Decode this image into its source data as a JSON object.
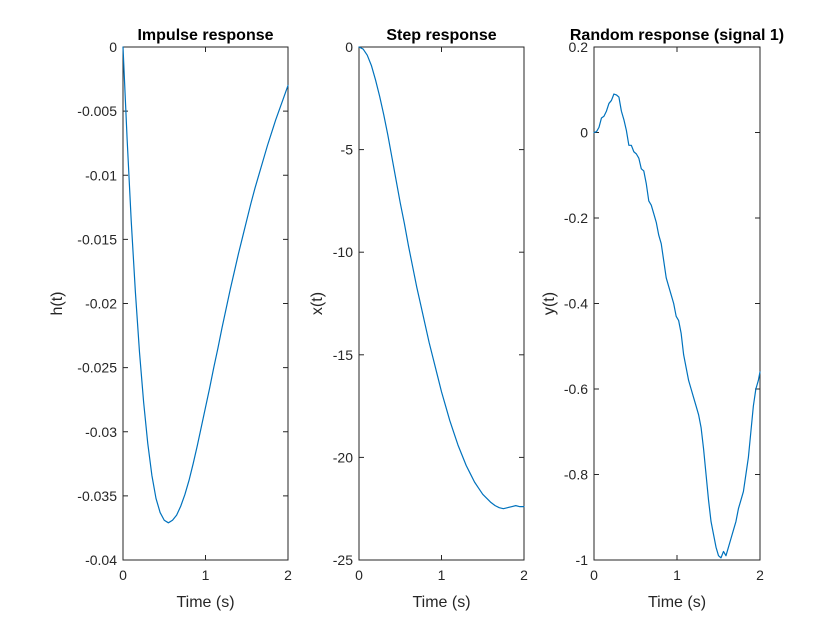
{
  "chart_data": [
    {
      "type": "line",
      "title": "Impulse response",
      "xlabel": "Time (s)",
      "ylabel": "h(t)",
      "xlim": [
        0,
        2
      ],
      "ylim": [
        -0.04,
        0
      ],
      "xticks": [
        0,
        1,
        2
      ],
      "yticks": [
        -0.04,
        -0.035,
        -0.03,
        -0.025,
        -0.02,
        -0.015,
        -0.01,
        -0.005,
        0
      ],
      "xtick_labels": [
        "0",
        "1",
        "2"
      ],
      "ytick_labels": [
        "-0.04",
        "-0.035",
        "-0.03",
        "-0.025",
        "-0.02",
        "-0.015",
        "-0.01",
        "-0.005",
        "0"
      ],
      "grid": false,
      "line_color": "#0072BD",
      "series": [
        {
          "x": [
            0,
            0.05,
            0.1,
            0.15,
            0.2,
            0.25,
            0.3,
            0.35,
            0.4,
            0.45,
            0.5,
            0.55,
            0.6,
            0.65,
            0.7,
            0.75,
            0.8,
            0.85,
            0.9,
            0.95,
            1.0,
            1.05,
            1.1,
            1.15,
            1.2,
            1.25,
            1.3,
            1.35,
            1.4,
            1.45,
            1.5,
            1.55,
            1.6,
            1.65,
            1.7,
            1.75,
            1.8,
            1.85,
            1.9,
            1.95,
            2.0
          ],
          "y": [
            0,
            -0.0072,
            -0.0136,
            -0.0191,
            -0.0238,
            -0.0277,
            -0.0309,
            -0.0334,
            -0.0352,
            -0.0363,
            -0.0369,
            -0.0371,
            -0.0369,
            -0.0365,
            -0.0358,
            -0.0349,
            -0.0338,
            -0.0325,
            -0.0311,
            -0.0296,
            -0.0281,
            -0.0266,
            -0.025,
            -0.0235,
            -0.0219,
            -0.0204,
            -0.0189,
            -0.0175,
            -0.0161,
            -0.0148,
            -0.0135,
            -0.0122,
            -0.011,
            -0.0099,
            -0.0088,
            -0.0077,
            -0.0067,
            -0.0057,
            -0.0048,
            -0.0039,
            -0.003
          ]
        }
      ]
    },
    {
      "type": "line",
      "title": "Step response",
      "xlabel": "Time (s)",
      "ylabel": "x(t)",
      "xlim": [
        0,
        2
      ],
      "ylim": [
        -25,
        0
      ],
      "xticks": [
        0,
        1,
        2
      ],
      "yticks": [
        -25,
        -20,
        -15,
        -10,
        -5,
        0
      ],
      "xtick_labels": [
        "0",
        "1",
        "2"
      ],
      "ytick_labels": [
        "-25",
        "-20",
        "-15",
        "-10",
        "-5",
        "0"
      ],
      "grid": false,
      "line_color": "#0072BD",
      "series": [
        {
          "x": [
            0,
            0.05,
            0.1,
            0.15,
            0.2,
            0.25,
            0.3,
            0.35,
            0.4,
            0.45,
            0.5,
            0.55,
            0.6,
            0.65,
            0.7,
            0.75,
            0.8,
            0.85,
            0.9,
            0.95,
            1.0,
            1.05,
            1.1,
            1.15,
            1.2,
            1.25,
            1.3,
            1.35,
            1.4,
            1.45,
            1.5,
            1.55,
            1.6,
            1.65,
            1.7,
            1.75,
            1.8,
            1.85,
            1.9,
            1.95,
            2.0
          ],
          "y": [
            0,
            -0.1,
            -0.4,
            -0.9,
            -1.6,
            -2.4,
            -3.3,
            -4.3,
            -5.4,
            -6.5,
            -7.6,
            -8.6,
            -9.7,
            -10.7,
            -11.7,
            -12.6,
            -13.5,
            -14.4,
            -15.2,
            -16.0,
            -16.8,
            -17.5,
            -18.2,
            -18.8,
            -19.4,
            -19.9,
            -20.4,
            -20.8,
            -21.2,
            -21.5,
            -21.8,
            -22.0,
            -22.2,
            -22.35,
            -22.45,
            -22.5,
            -22.45,
            -22.4,
            -22.35,
            -22.4,
            -22.4
          ]
        }
      ]
    },
    {
      "type": "line",
      "title": "Random response (signal 1)",
      "xlabel": "Time (s)",
      "ylabel": "y(t)",
      "xlim": [
        0,
        2
      ],
      "ylim": [
        -1,
        0.2
      ],
      "xticks": [
        0,
        1,
        2
      ],
      "yticks": [
        -1,
        -0.8,
        -0.6,
        -0.4,
        -0.2,
        0,
        0.2
      ],
      "xtick_labels": [
        "0",
        "1",
        "2"
      ],
      "ytick_labels": [
        "-1",
        "-0.8",
        "-0.6",
        "-0.4",
        "-0.2",
        "0",
        "0.2"
      ],
      "grid": false,
      "line_color": "#0072BD",
      "series": [
        {
          "x": [
            0,
            0.03,
            0.06,
            0.09,
            0.12,
            0.15,
            0.18,
            0.21,
            0.24,
            0.27,
            0.3,
            0.33,
            0.36,
            0.39,
            0.42,
            0.45,
            0.48,
            0.51,
            0.54,
            0.57,
            0.6,
            0.63,
            0.66,
            0.69,
            0.72,
            0.75,
            0.78,
            0.81,
            0.84,
            0.87,
            0.9,
            0.93,
            0.96,
            0.99,
            1.02,
            1.05,
            1.08,
            1.11,
            1.14,
            1.17,
            1.2,
            1.23,
            1.26,
            1.29,
            1.32,
            1.35,
            1.38,
            1.41,
            1.44,
            1.47,
            1.5,
            1.53,
            1.56,
            1.59,
            1.62,
            1.65,
            1.68,
            1.71,
            1.74,
            1.77,
            1.8,
            1.83,
            1.86,
            1.89,
            1.92,
            1.95,
            1.98,
            2.0
          ],
          "y": [
            0,
            0.002,
            0.012,
            0.034,
            0.038,
            0.05,
            0.068,
            0.075,
            0.09,
            0.088,
            0.083,
            0.05,
            0.03,
            0.005,
            -0.03,
            -0.03,
            -0.045,
            -0.05,
            -0.06,
            -0.085,
            -0.09,
            -0.12,
            -0.16,
            -0.17,
            -0.19,
            -0.21,
            -0.24,
            -0.26,
            -0.3,
            -0.34,
            -0.36,
            -0.38,
            -0.4,
            -0.43,
            -0.44,
            -0.47,
            -0.52,
            -0.55,
            -0.58,
            -0.6,
            -0.62,
            -0.64,
            -0.66,
            -0.69,
            -0.74,
            -0.8,
            -0.86,
            -0.91,
            -0.94,
            -0.97,
            -0.99,
            -0.995,
            -0.98,
            -0.99,
            -0.97,
            -0.95,
            -0.93,
            -0.91,
            -0.88,
            -0.86,
            -0.84,
            -0.8,
            -0.76,
            -0.7,
            -0.64,
            -0.6,
            -0.58,
            -0.56
          ]
        }
      ]
    }
  ]
}
